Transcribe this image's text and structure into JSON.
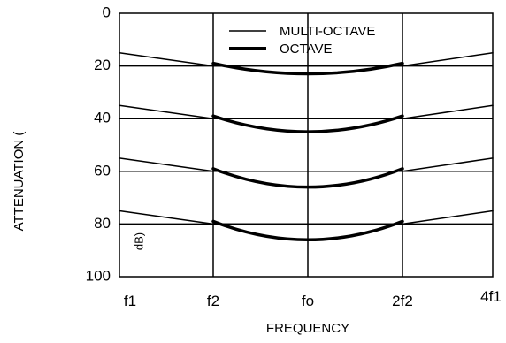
{
  "chart_data": {
    "type": "line",
    "title": "",
    "xlabel": "FREQUENCY",
    "ylabel": "ATTENUATION (",
    "ylabel_unit": "dB)",
    "x_ticks": [
      "f1",
      "f2",
      "fo",
      "2f2",
      "4f1"
    ],
    "y_ticks": [
      "0",
      "20",
      "40",
      "60",
      "80",
      "100"
    ],
    "ylim": [
      0,
      100
    ],
    "y_inverted": true,
    "grid": true,
    "legend_position": "top-center",
    "legend": [
      {
        "name": "MULTI-OCTAVE",
        "style": "thin"
      },
      {
        "name": "OCTAVE",
        "style": "thick"
      }
    ],
    "series": [
      {
        "name": "MULTI-OCTAVE",
        "x": [
          0,
          1,
          3,
          4
        ],
        "values": [
          15,
          20,
          20,
          15
        ]
      },
      {
        "name": "MULTI-OCTAVE",
        "x": [
          0,
          1,
          3,
          4
        ],
        "values": [
          35,
          40,
          40,
          35
        ]
      },
      {
        "name": "MULTI-OCTAVE",
        "x": [
          0,
          1,
          3,
          4
        ],
        "values": [
          55,
          60,
          60,
          55
        ]
      },
      {
        "name": "MULTI-OCTAVE",
        "x": [
          0,
          1,
          3,
          4
        ],
        "values": [
          75,
          80,
          80,
          75
        ]
      },
      {
        "name": "OCTAVE",
        "x": [
          1,
          2,
          3
        ],
        "values": [
          19,
          23,
          19
        ]
      },
      {
        "name": "OCTAVE",
        "x": [
          1,
          2,
          3
        ],
        "values": [
          39,
          45,
          39
        ]
      },
      {
        "name": "OCTAVE",
        "x": [
          1,
          2,
          3
        ],
        "values": [
          59,
          66,
          59
        ]
      },
      {
        "name": "OCTAVE",
        "x": [
          1,
          2,
          3
        ],
        "values": [
          79,
          86,
          79
        ]
      }
    ]
  }
}
